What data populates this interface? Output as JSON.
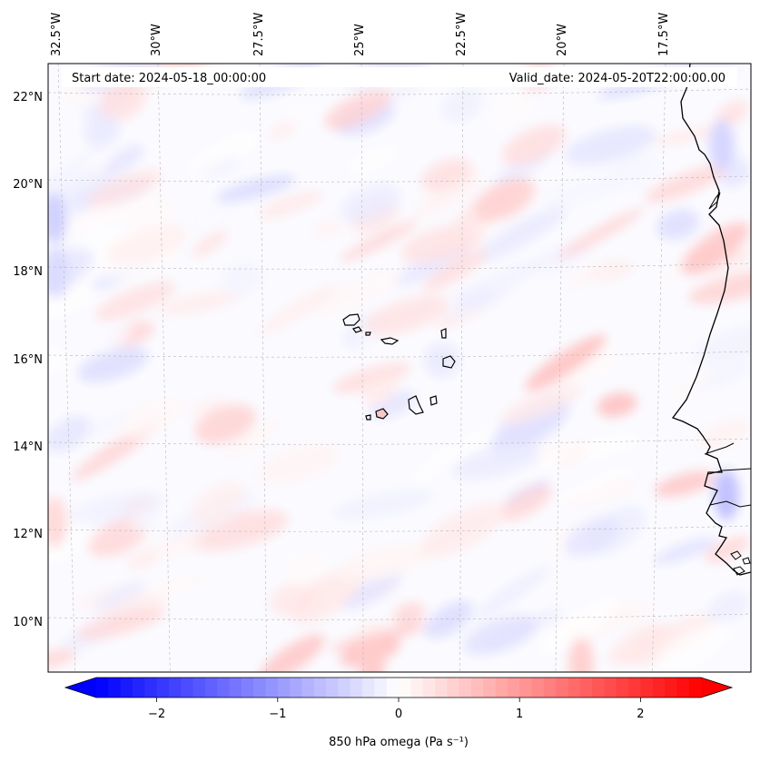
{
  "header": {
    "start_date": "Start date: 2024-05-18_00:00:00",
    "valid_date": "Valid_date: 2024-05-20T22:00:00.00"
  },
  "map": {
    "longitude_labels": [
      "32.5°W",
      "30°W",
      "27.5°W",
      "25°W",
      "22.5°W",
      "20°W",
      "17.5°W"
    ],
    "latitude_labels": [
      "22°N",
      "20°N",
      "18°N",
      "16°N",
      "14°N",
      "12°N",
      "10°N"
    ],
    "extent": {
      "lon_min": -33.0,
      "lon_max": -15.5,
      "lat_min": 8.9,
      "lat_max": 22.8
    },
    "gridlines": true,
    "field": "850 hPa omega",
    "colormap": "bwr"
  },
  "colorbar": {
    "label": "850 hPa omega (Pa s⁻¹)",
    "ticks": [
      "−2",
      "−1",
      "0",
      "1",
      "2"
    ],
    "tick_values": [
      -2,
      -1,
      0,
      1,
      2
    ],
    "range": [
      -2.5,
      2.5
    ],
    "extend": "both",
    "low_color": "#0000ff",
    "mid_color": "#ffffff",
    "high_color": "#ff0000"
  }
}
